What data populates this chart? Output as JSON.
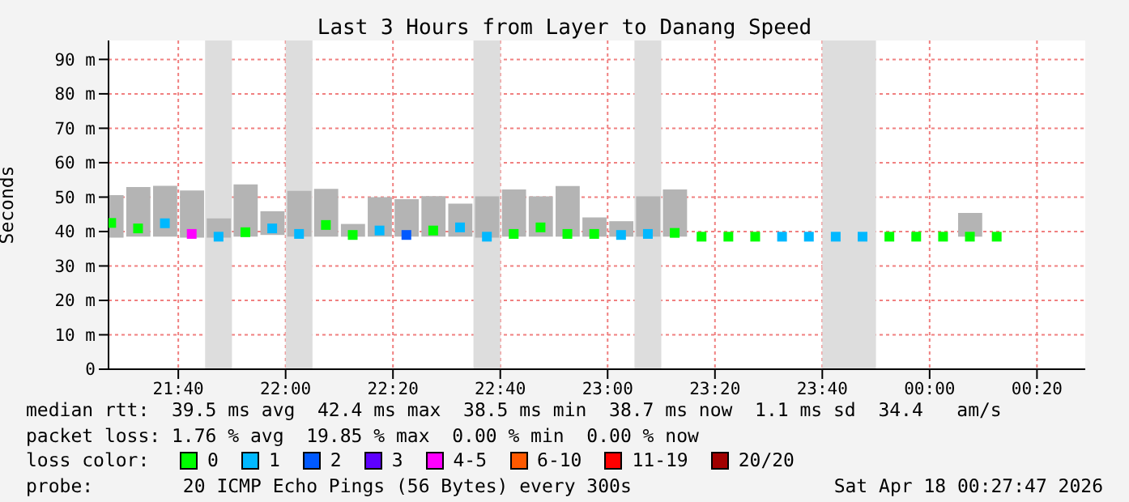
{
  "chart_data": {
    "type": "scatter",
    "title": "Last 3 Hours from Layer to Danang Speed",
    "ylabel": "Seconds",
    "xlim": [
      "2026-04-17T21:27",
      "2026-04-18T00:29"
    ],
    "xticks": [
      {
        "value": "2026-04-17T21:40",
        "label": "21:40"
      },
      {
        "value": "2026-04-17T22:00",
        "label": "22:00"
      },
      {
        "value": "2026-04-17T22:20",
        "label": "22:20"
      },
      {
        "value": "2026-04-17T22:40",
        "label": "22:40"
      },
      {
        "value": "2026-04-17T23:00",
        "label": "23:00"
      },
      {
        "value": "2026-04-17T23:20",
        "label": "23:20"
      },
      {
        "value": "2026-04-17T23:40",
        "label": "23:40"
      },
      {
        "value": "2026-04-18T00:00",
        "label": "00:00"
      },
      {
        "value": "2026-04-18T00:20",
        "label": "00:20"
      }
    ],
    "ylim": [
      0,
      95.5
    ],
    "yticks": [
      0,
      {
        "value": 10,
        "label": "10 m"
      },
      {
        "value": 20,
        "label": "20 m"
      },
      {
        "value": 30,
        "label": "30 m"
      },
      {
        "value": 40,
        "label": "40 m"
      },
      {
        "value": 50,
        "label": "50 m"
      },
      {
        "value": 60,
        "label": "60 m"
      },
      {
        "value": 70,
        "label": "70 m"
      },
      {
        "value": 80,
        "label": "80 m"
      },
      {
        "value": 90,
        "label": "90 m"
      }
    ],
    "grid": true,
    "marker": "square",
    "legend": "bottom",
    "legend_title": "loss color:",
    "bands": [
      {
        "axis": "x",
        "from": "2026-04-17T21:45",
        "to": "2026-04-17T21:50",
        "color": "#dddddd"
      },
      {
        "axis": "x",
        "from": "2026-04-17T22:00",
        "to": "2026-04-17T22:05",
        "color": "#dddddd"
      },
      {
        "axis": "x",
        "from": "2026-04-17T22:35",
        "to": "2026-04-17T22:40",
        "color": "#dddddd"
      },
      {
        "axis": "x",
        "from": "2026-04-17T23:05",
        "to": "2026-04-17T23:10",
        "color": "#dddddd"
      },
      {
        "axis": "x",
        "from": "2026-04-17T23:40",
        "to": "2026-04-17T23:50",
        "color": "#dddddd"
      }
    ],
    "series": [
      {
        "type": "bar",
        "color": "#b4b4b4",
        "x": [
          "2026-04-17T21:27:30",
          "2026-04-17T21:32:30",
          "2026-04-17T21:37:30",
          "2026-04-17T21:42:30",
          "2026-04-17T21:47:30",
          "2026-04-17T21:52:30",
          "2026-04-17T21:57:30",
          "2026-04-17T22:02:30",
          "2026-04-17T22:07:30",
          "2026-04-17T22:12:30",
          "2026-04-17T22:17:30",
          "2026-04-17T22:22:30",
          "2026-04-17T22:27:30",
          "2026-04-17T22:32:30",
          "2026-04-17T22:37:30",
          "2026-04-17T22:42:30",
          "2026-04-17T22:47:30",
          "2026-04-17T22:52:30",
          "2026-04-17T22:57:30",
          "2026-04-17T23:02:30",
          "2026-04-17T23:07:30",
          "2026-04-17T23:12:30",
          "2026-04-18T00:07:30"
        ],
        "base": [
          38.2,
          38.5,
          38.5,
          38.2,
          38.2,
          38.5,
          39,
          38.5,
          38.5,
          38.5,
          38.5,
          38.5,
          38.5,
          38.5,
          38.2,
          38.5,
          38.5,
          38.5,
          38.5,
          38.5,
          38.5,
          38.5,
          38.5
        ],
        "values": [
          12.4,
          14.4,
          14.8,
          13.7,
          5.6,
          15.2,
          6.9,
          13.3,
          13.9,
          3.7,
          11.5,
          10.9,
          11.8,
          9.6,
          12.0,
          13.7,
          11.7,
          14.7,
          5.6,
          4.5,
          11.7,
          13.7,
          6.9
        ]
      },
      {
        "name": "0",
        "color": "#00ff00",
        "x": [
          "2026-04-17T21:27:30",
          "2026-04-17T21:32:30",
          "2026-04-17T21:52:30",
          "2026-04-17T22:07:30",
          "2026-04-17T22:12:30",
          "2026-04-17T22:27:30",
          "2026-04-17T22:42:30",
          "2026-04-17T22:47:30",
          "2026-04-17T22:52:30",
          "2026-04-17T22:57:30",
          "2026-04-17T23:12:30",
          "2026-04-17T23:17:30",
          "2026-04-17T23:22:30",
          "2026-04-17T23:27:30",
          "2026-04-17T23:52:30",
          "2026-04-17T23:57:30",
          "2026-04-18T00:02:30",
          "2026-04-18T00:07:30",
          "2026-04-18T00:12:30"
        ],
        "values": [
          42.5,
          40.9,
          39.8,
          41.9,
          39.0,
          40.3,
          39.3,
          41.2,
          39.3,
          39.3,
          39.6,
          38.5,
          38.5,
          38.5,
          38.5,
          38.5,
          38.5,
          38.5,
          38.5
        ]
      },
      {
        "name": "1",
        "color": "#00b8ff",
        "x": [
          "2026-04-17T21:37:30",
          "2026-04-17T21:47:30",
          "2026-04-17T21:57:30",
          "2026-04-17T22:02:30",
          "2026-04-17T22:17:30",
          "2026-04-17T22:32:30",
          "2026-04-17T22:37:30",
          "2026-04-17T23:02:30",
          "2026-04-17T23:07:30",
          "2026-04-17T23:32:30",
          "2026-04-17T23:37:30",
          "2026-04-17T23:42:30",
          "2026-04-17T23:47:30"
        ],
        "values": [
          42.4,
          38.5,
          40.9,
          39.3,
          40.3,
          41.2,
          38.5,
          39.0,
          39.3,
          38.5,
          38.5,
          38.5,
          38.5
        ]
      },
      {
        "name": "2",
        "color": "#0059ff",
        "x": [
          "2026-04-17T22:22:30"
        ],
        "values": [
          39.0
        ]
      },
      {
        "name": "3",
        "color": "#5e00ff"
      },
      {
        "name": "4-5",
        "color": "#ff00ff",
        "x": [
          "2026-04-17T21:42:30"
        ],
        "values": [
          39.3
        ]
      },
      {
        "name": "6-10",
        "color": "#ff5900"
      },
      {
        "name": "11-19",
        "color": "#ff0000"
      },
      {
        "name": "20/20",
        "color": "#a10000"
      }
    ],
    "annotations": [
      "median rtt:  39.5 ms avg  42.4 ms max  38.5 ms min  38.7 ms now  1.1 ms sd  34.4   am/s",
      "packet loss: 1.76 % avg  19.85 % max  0.00 % min  0.00 % now",
      "probe:        20 ICMP Echo Pings (56 Bytes) every 300s",
      "Sat Apr 18 00:27:47 2026"
    ]
  }
}
